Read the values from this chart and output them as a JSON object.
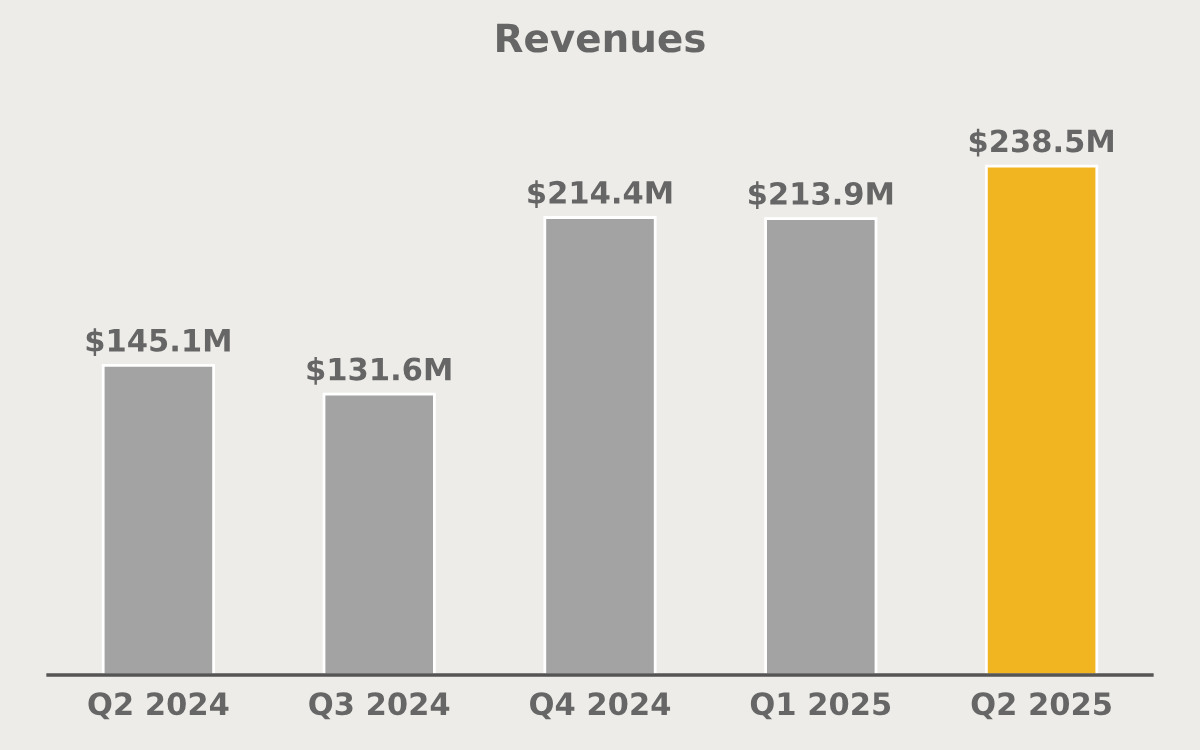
{
  "chart_data": {
    "type": "bar",
    "title": "Revenues",
    "categories": [
      "Q2 2024",
      "Q3 2024",
      "Q4 2024",
      "Q1 2025",
      "Q2 2025"
    ],
    "values": [
      145.1,
      131.6,
      214.4,
      213.9,
      238.5
    ],
    "value_labels": [
      "$145.1M",
      "$131.6M",
      "$214.4M",
      "$213.9M",
      "$238.5M"
    ],
    "colors": [
      "#a3a3a3",
      "#a3a3a3",
      "#a3a3a3",
      "#a3a3a3",
      "#f2b522"
    ],
    "grid": false,
    "legend": false
  }
}
